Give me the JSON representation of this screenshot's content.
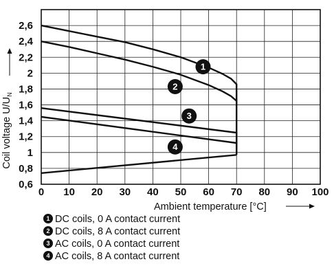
{
  "chart_data": {
    "type": "line",
    "xlabel": "Ambient temperature [°C]",
    "ylabel": "Coil voltage U/U",
    "ylabel_subscript": "N",
    "xlim": [
      0,
      100
    ],
    "ylim": [
      0.6,
      2.8
    ],
    "x_ticks": [
      0,
      10,
      20,
      30,
      40,
      50,
      60,
      70,
      80,
      90,
      100
    ],
    "y_ticks": [
      0.6,
      0.8,
      1.0,
      1.2,
      1.4,
      1.6,
      1.8,
      2.0,
      2.2,
      2.4,
      2.6
    ],
    "x_tick_labels": [
      "0",
      "10",
      "20",
      "30",
      "40",
      "50",
      "60",
      "70",
      "80",
      "90",
      "100"
    ],
    "y_tick_labels": [
      "0,6",
      "0,8",
      "1",
      "1,2",
      "1,4",
      "1,6",
      "1,8",
      "2",
      "2,2",
      "2,4",
      "2,6"
    ],
    "grid": true,
    "series": [
      {
        "name": "DC coils, 0 A contact current",
        "marker": "1",
        "marker_at": [
          58,
          2.08
        ],
        "x": [
          0,
          10,
          20,
          30,
          40,
          50,
          60,
          65,
          68,
          70,
          70
        ],
        "y": [
          2.6,
          2.53,
          2.46,
          2.39,
          2.3,
          2.2,
          2.07,
          1.99,
          1.93,
          1.86,
          1.6
        ]
      },
      {
        "name": "DC coils, 8 A contact current",
        "marker": "2",
        "marker_at": [
          48,
          1.83
        ],
        "x": [
          0,
          10,
          20,
          30,
          40,
          50,
          60,
          65,
          68,
          70,
          70
        ],
        "y": [
          2.4,
          2.33,
          2.25,
          2.17,
          2.08,
          1.98,
          1.85,
          1.77,
          1.71,
          1.65,
          1.08
        ]
      },
      {
        "name": "AC coils, 0 A contact current",
        "marker": "3",
        "marker_at": [
          53,
          1.46
        ],
        "x": [
          0,
          70,
          70
        ],
        "y": [
          1.56,
          1.25,
          1.0
        ]
      },
      {
        "name": "AC coils, 8 A contact current",
        "marker": "4",
        "marker_at": [
          48,
          1.07
        ],
        "x": [
          0,
          70,
          70
        ],
        "y": [
          1.45,
          1.12,
          0.97
        ]
      },
      {
        "name": "",
        "marker": "",
        "marker_at": null,
        "x": [
          0,
          70
        ],
        "y": [
          0.74,
          0.97
        ]
      }
    ],
    "legend": [
      {
        "num": "1",
        "text": "DC coils, 0 A contact current"
      },
      {
        "num": "2",
        "text": "DC coils, 8 A contact current"
      },
      {
        "num": "3",
        "text": "AC coils, 0 A contact current"
      },
      {
        "num": "4",
        "text": "AC coils, 8 A contact current"
      }
    ]
  }
}
